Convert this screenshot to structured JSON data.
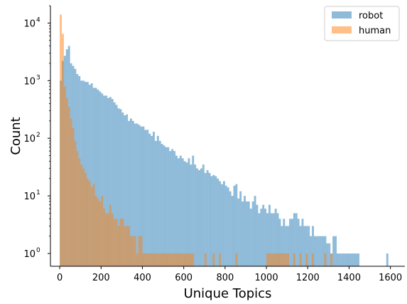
{
  "chart_data": {
    "type": "histogram",
    "xlabel": "Unique Topics",
    "ylabel": "Count",
    "xlim": [
      -45,
      1670
    ],
    "ylim": [
      0.6,
      20000
    ],
    "y_scale": "log",
    "grid": false,
    "legend_position": "top-right",
    "x_ticks": [
      0,
      200,
      400,
      600,
      800,
      1000,
      1200,
      1400,
      1600
    ],
    "y_ticks": [
      {
        "value": 1,
        "base": "10",
        "exp": "0"
      },
      {
        "value": 10,
        "base": "10",
        "exp": "1"
      },
      {
        "value": 100,
        "base": "10",
        "exp": "2"
      },
      {
        "value": 1000,
        "base": "10",
        "exp": "3"
      },
      {
        "value": 10000,
        "base": "10",
        "exp": "4"
      }
    ],
    "bin_width": 10,
    "series": [
      {
        "name": "robot",
        "color": "#1f77b4",
        "opacity": 0.5,
        "x_start": [
          0,
          10,
          20,
          30,
          40,
          50,
          60,
          70,
          80,
          90,
          100,
          110,
          120,
          130,
          140,
          150,
          160,
          170,
          180,
          190,
          200,
          210,
          220,
          230,
          240,
          250,
          260,
          270,
          280,
          290,
          300,
          310,
          320,
          330,
          340,
          350,
          360,
          370,
          380,
          390,
          400,
          410,
          420,
          430,
          440,
          450,
          460,
          470,
          480,
          490,
          500,
          510,
          520,
          530,
          540,
          550,
          560,
          570,
          580,
          590,
          600,
          610,
          620,
          630,
          640,
          650,
          660,
          670,
          680,
          690,
          700,
          710,
          720,
          730,
          740,
          750,
          760,
          770,
          780,
          790,
          800,
          810,
          820,
          830,
          840,
          850,
          860,
          870,
          880,
          890,
          900,
          910,
          920,
          930,
          940,
          950,
          960,
          970,
          980,
          990,
          1000,
          1010,
          1020,
          1030,
          1040,
          1050,
          1060,
          1070,
          1080,
          1090,
          1100,
          1110,
          1120,
          1130,
          1140,
          1150,
          1160,
          1170,
          1180,
          1190,
          1200,
          1210,
          1220,
          1230,
          1240,
          1250,
          1260,
          1270,
          1280,
          1290,
          1300,
          1310,
          1320,
          1330,
          1340,
          1350,
          1360,
          1370,
          1380,
          1390,
          1400,
          1410,
          1420,
          1430,
          1440,
          1580
        ],
        "counts": [
          1000,
          2200,
          2700,
          3500,
          4000,
          2000,
          1800,
          1600,
          1300,
          1200,
          1000,
          1000,
          950,
          950,
          850,
          900,
          750,
          750,
          700,
          650,
          600,
          550,
          550,
          500,
          520,
          480,
          420,
          380,
          330,
          320,
          280,
          250,
          260,
          200,
          220,
          200,
          180,
          180,
          170,
          160,
          160,
          140,
          140,
          120,
          110,
          130,
          90,
          110,
          90,
          80,
          75,
          70,
          70,
          60,
          65,
          60,
          50,
          45,
          50,
          45,
          40,
          38,
          45,
          35,
          50,
          35,
          30,
          28,
          30,
          35,
          25,
          28,
          25,
          22,
          23,
          22,
          20,
          18,
          16,
          18,
          15,
          14,
          12,
          10,
          15,
          16,
          9,
          12,
          8,
          10,
          8,
          8,
          6,
          8,
          10,
          7,
          5,
          6,
          7,
          6,
          5,
          7,
          5,
          5,
          6,
          5,
          4,
          3,
          4,
          3,
          3,
          4,
          4,
          5,
          5,
          4,
          3,
          4,
          3,
          3,
          3,
          2,
          3,
          2,
          2,
          2,
          2,
          2,
          2,
          1.5,
          1.5,
          1,
          2,
          2,
          1,
          1,
          1,
          1,
          1,
          1,
          1,
          1,
          1,
          1,
          1,
          1
        ]
      },
      {
        "name": "human",
        "color": "#ff7f0e",
        "opacity": 0.5,
        "x_start": [
          0,
          10,
          20,
          30,
          40,
          50,
          60,
          70,
          80,
          90,
          100,
          110,
          120,
          130,
          140,
          150,
          160,
          170,
          180,
          190,
          200,
          210,
          220,
          230,
          240,
          250,
          260,
          270,
          280,
          290,
          300,
          310,
          320,
          330,
          340,
          350,
          360,
          370,
          380,
          390,
          400,
          410,
          420,
          430,
          440,
          450,
          460,
          470,
          480,
          490,
          500,
          510,
          520,
          530,
          540,
          550,
          560,
          570,
          580,
          590,
          600,
          610,
          620,
          630,
          640,
          700,
          740,
          770,
          850,
          1000,
          1010,
          1020,
          1030,
          1040,
          1050,
          1060,
          1070,
          1080,
          1090,
          1100,
          1130,
          1160,
          1190,
          1220,
          1280,
          1310
        ],
        "counts": [
          14000,
          6500,
          800,
          500,
          350,
          220,
          150,
          90,
          60,
          45,
          35,
          30,
          25,
          20,
          18,
          14,
          16,
          10,
          9,
          8,
          10,
          6,
          5,
          5,
          7,
          5,
          4,
          4,
          3,
          4,
          4,
          3,
          3,
          3,
          2,
          2,
          2,
          1,
          2,
          2,
          1,
          1,
          1,
          1,
          1,
          1,
          1,
          1,
          1,
          1,
          1,
          1,
          1,
          1,
          1,
          1,
          1,
          1,
          1,
          1,
          1,
          1,
          1,
          1,
          1,
          1,
          1,
          1,
          1,
          1,
          1,
          1,
          1,
          1,
          1,
          1,
          1,
          1,
          1,
          1,
          1,
          1,
          1,
          1,
          1,
          1
        ]
      }
    ]
  }
}
